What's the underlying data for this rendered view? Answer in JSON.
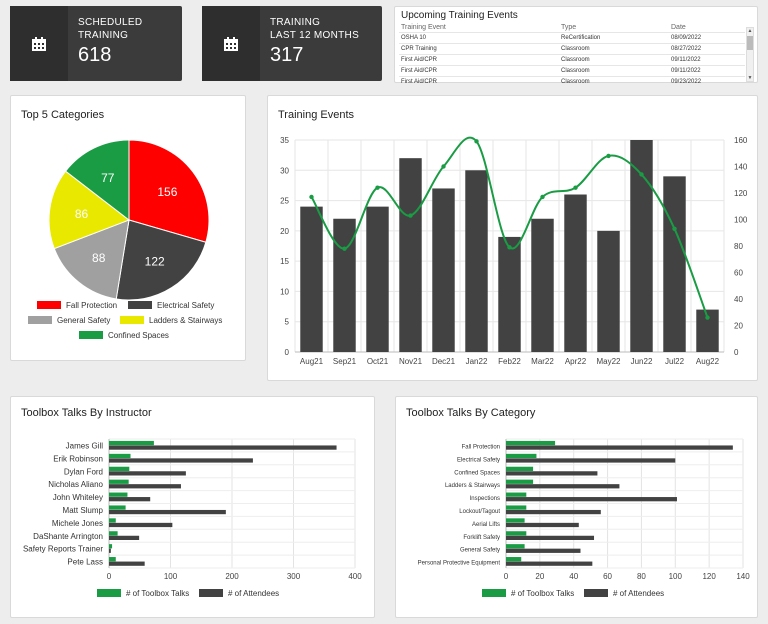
{
  "kpis": [
    {
      "label_line1": "SCHEDULED",
      "label_line2": "TRAINING",
      "value": "618",
      "icon": "calendar-icon"
    },
    {
      "label_line1": "TRAINING",
      "label_line2": "LAST 12 MONTHS",
      "value": "317",
      "icon": "calendar-icon"
    }
  ],
  "upcoming": {
    "title": "Upcoming Training Events",
    "columns": [
      "Training Event",
      "Type",
      "Date"
    ],
    "rows": [
      [
        "OSHA 10",
        "ReCertification",
        "08/09/2022"
      ],
      [
        "CPR Training",
        "Classroom",
        "08/27/2022"
      ],
      [
        "First Aid/CPR",
        "Classroom",
        "09/11/2022"
      ],
      [
        "First Aid/CPR",
        "Classroom",
        "09/11/2022"
      ],
      [
        "First Aid/CPR",
        "Classroom",
        "09/23/2022"
      ]
    ]
  },
  "pie_card": {
    "title": "Top 5 Categories"
  },
  "events_card": {
    "title": "Training Events"
  },
  "instructor_card": {
    "title": "Toolbox Talks By Instructor"
  },
  "category_card": {
    "title": "Toolbox Talks By Category"
  },
  "colors": {
    "red": "#ff0000",
    "dark": "#424242",
    "grey": "#a0a0a0",
    "yellow": "#e8e800",
    "green": "#1a9c45"
  },
  "chart_data": [
    {
      "type": "pie",
      "title": "Top 5 Categories",
      "categories": [
        "Fall Protection",
        "Electrical Safety",
        "General Safety",
        "Ladders & Stairways",
        "Confined Spaces"
      ],
      "values": [
        156,
        122,
        88,
        86,
        77
      ],
      "colors": [
        "#ff0000",
        "#424242",
        "#a0a0a0",
        "#e8e800",
        "#1a9c45"
      ],
      "legend": "bottom"
    },
    {
      "type": "bar",
      "title": "Training Events",
      "categories": [
        "Aug21",
        "Sep21",
        "Oct21",
        "Nov21",
        "Dec21",
        "Jan22",
        "Feb22",
        "Mar22",
        "Apr22",
        "May22",
        "Jun22",
        "Jul22",
        "Aug22"
      ],
      "series": [
        {
          "values": [
            24,
            22,
            24,
            32,
            27,
            30,
            19,
            22,
            26,
            20,
            35,
            29,
            7
          ],
          "axis": "left",
          "type": "bar"
        },
        {
          "values": [
            117,
            78,
            124,
            103,
            140,
            159,
            79,
            117,
            124,
            148,
            134,
            93,
            26
          ],
          "axis": "right",
          "type": "line"
        }
      ],
      "ylim": [
        0,
        35
      ],
      "yticks": [
        0,
        5,
        10,
        15,
        20,
        25,
        30,
        35
      ],
      "y2lim": [
        0,
        160
      ],
      "y2ticks": [
        0,
        20,
        40,
        60,
        80,
        100,
        120,
        140,
        160
      ],
      "grid": true
    },
    {
      "type": "bar",
      "orientation": "horizontal",
      "title": "Toolbox Talks By Instructor",
      "categories": [
        "James Gill",
        "Erik Robinson",
        "Dylan Ford",
        "Nicholas Aliano",
        "John Whiteley",
        "Matt Slump",
        "Michele Jones",
        "DaShante Arrington",
        "Safety Reports Trainer",
        "Pete Lass"
      ],
      "series": [
        {
          "name": "# of Toolbox Talks",
          "values": [
            73,
            35,
            33,
            32,
            30,
            27,
            11,
            14,
            5,
            11
          ]
        },
        {
          "name": "# of Attendees",
          "values": [
            370,
            234,
            125,
            117,
            67,
            190,
            103,
            49,
            3,
            58
          ]
        }
      ],
      "xlim": [
        0,
        400
      ],
      "xticks": [
        0,
        100,
        200,
        300,
        400
      ],
      "grid": true,
      "legend": "bottom"
    },
    {
      "type": "bar",
      "orientation": "horizontal",
      "title": "Toolbox Talks By Category",
      "categories": [
        "Fall Protection",
        "Electrical Safety",
        "Confined Spaces",
        "Ladders & Stairways",
        "Inspections",
        "Lockout/Tagout",
        "Aerial Lifts",
        "Forklift Safety",
        "General Safety",
        "Personal Protective Equipment"
      ],
      "series": [
        {
          "name": "# of Toolbox Talks",
          "values": [
            29,
            18,
            16,
            16,
            12,
            12,
            11,
            12,
            11,
            9
          ]
        },
        {
          "name": "# of Attendees",
          "values": [
            134,
            100,
            54,
            67,
            101,
            56,
            43,
            52,
            44,
            51
          ]
        }
      ],
      "xlim": [
        0,
        140
      ],
      "xticks": [
        0,
        20,
        40,
        60,
        80,
        100,
        120,
        140
      ],
      "grid": true,
      "legend": "bottom"
    }
  ]
}
